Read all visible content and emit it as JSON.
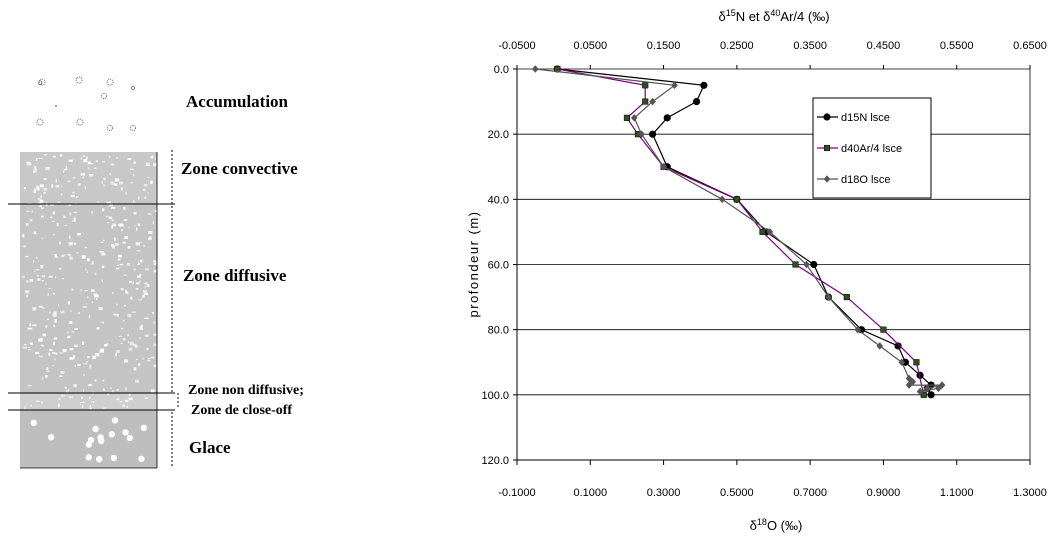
{
  "diagram": {
    "labels": {
      "accumulation": "Accumulation",
      "convective": "Zone convective",
      "diffusive": "Zone diffusive",
      "non_diffusive": "Zone non diffusive;",
      "close_off": "Zone de close-off",
      "ice": "Glace"
    },
    "colors": {
      "firn": "#c8c8c8",
      "ice": "#c0c0c0",
      "pore": "#ffffff"
    }
  },
  "chart_data": {
    "type": "line",
    "top_axis": {
      "label_main": "δ",
      "label_sup1": "15",
      "label_mid": "N et δ",
      "label_sup2": "40",
      "label_end": "Ar/4 (‰)",
      "ticks": [
        "-0.0500",
        "0.0500",
        "0.1500",
        "0.2500",
        "0.3500",
        "0.4500",
        "0.5500",
        "0.6500"
      ],
      "range": [
        -0.05,
        0.65
      ]
    },
    "bottom_axis": {
      "label_main": "δ",
      "label_sup": "18",
      "label_end": "O (‰)",
      "ticks": [
        "-0.1000",
        "0.1000",
        "0.3000",
        "0.5000",
        "0.7000",
        "0.9000",
        "1.1000",
        "1.3000"
      ],
      "range": [
        -0.1,
        1.3
      ]
    },
    "y_axis": {
      "label": "profondeur (m)",
      "ticks": [
        "0.0",
        "20.0",
        "40.0",
        "60.0",
        "80.0",
        "100.0",
        "120.0"
      ],
      "range": [
        0,
        120
      ],
      "inverted": true
    },
    "grid": "horizontal",
    "legend_position": "top-right",
    "series": [
      {
        "name": "d15N lsce",
        "axis": "top",
        "color": "#000000",
        "marker": "circle",
        "points": [
          [
            0.005,
            0
          ],
          [
            0.205,
            5
          ],
          [
            0.195,
            10
          ],
          [
            0.155,
            15
          ],
          [
            0.135,
            20
          ],
          [
            0.155,
            30
          ],
          [
            0.25,
            40
          ],
          [
            0.29,
            50
          ],
          [
            0.355,
            60
          ],
          [
            0.375,
            70
          ],
          [
            0.42,
            80
          ],
          [
            0.47,
            85
          ],
          [
            0.48,
            90
          ],
          [
            0.5,
            94
          ],
          [
            0.515,
            97
          ],
          [
            0.51,
            98
          ],
          [
            0.515,
            100
          ]
        ]
      },
      {
        "name": "d40Ar/4 lsce",
        "axis": "top",
        "color": "#800080",
        "marker": "square",
        "points": [
          [
            0.005,
            0
          ],
          [
            0.125,
            5
          ],
          [
            0.125,
            10
          ],
          [
            0.1,
            15
          ],
          [
            0.115,
            20
          ],
          [
            0.15,
            30
          ],
          [
            0.25,
            40
          ],
          [
            0.285,
            50
          ],
          [
            0.33,
            60
          ],
          [
            0.4,
            70
          ],
          [
            0.45,
            80
          ],
          [
            0.495,
            90
          ],
          [
            0.505,
            100
          ]
        ]
      },
      {
        "name": "d18O lsce",
        "axis": "bottom",
        "color": "#555555",
        "marker": "diamond",
        "points": [
          [
            -0.05,
            0
          ],
          [
            0.33,
            5
          ],
          [
            0.27,
            10
          ],
          [
            0.22,
            15
          ],
          [
            0.24,
            20
          ],
          [
            0.3,
            30
          ],
          [
            0.46,
            40
          ],
          [
            0.59,
            50
          ],
          [
            0.69,
            60
          ],
          [
            0.75,
            70
          ],
          [
            0.83,
            80
          ],
          [
            0.89,
            85
          ],
          [
            0.95,
            90
          ],
          [
            0.97,
            95
          ],
          [
            0.98,
            96
          ],
          [
            0.97,
            97
          ],
          [
            1.06,
            97
          ],
          [
            1.02,
            98
          ],
          [
            1.0,
            99
          ],
          [
            1.05,
            98
          ]
        ]
      }
    ]
  }
}
